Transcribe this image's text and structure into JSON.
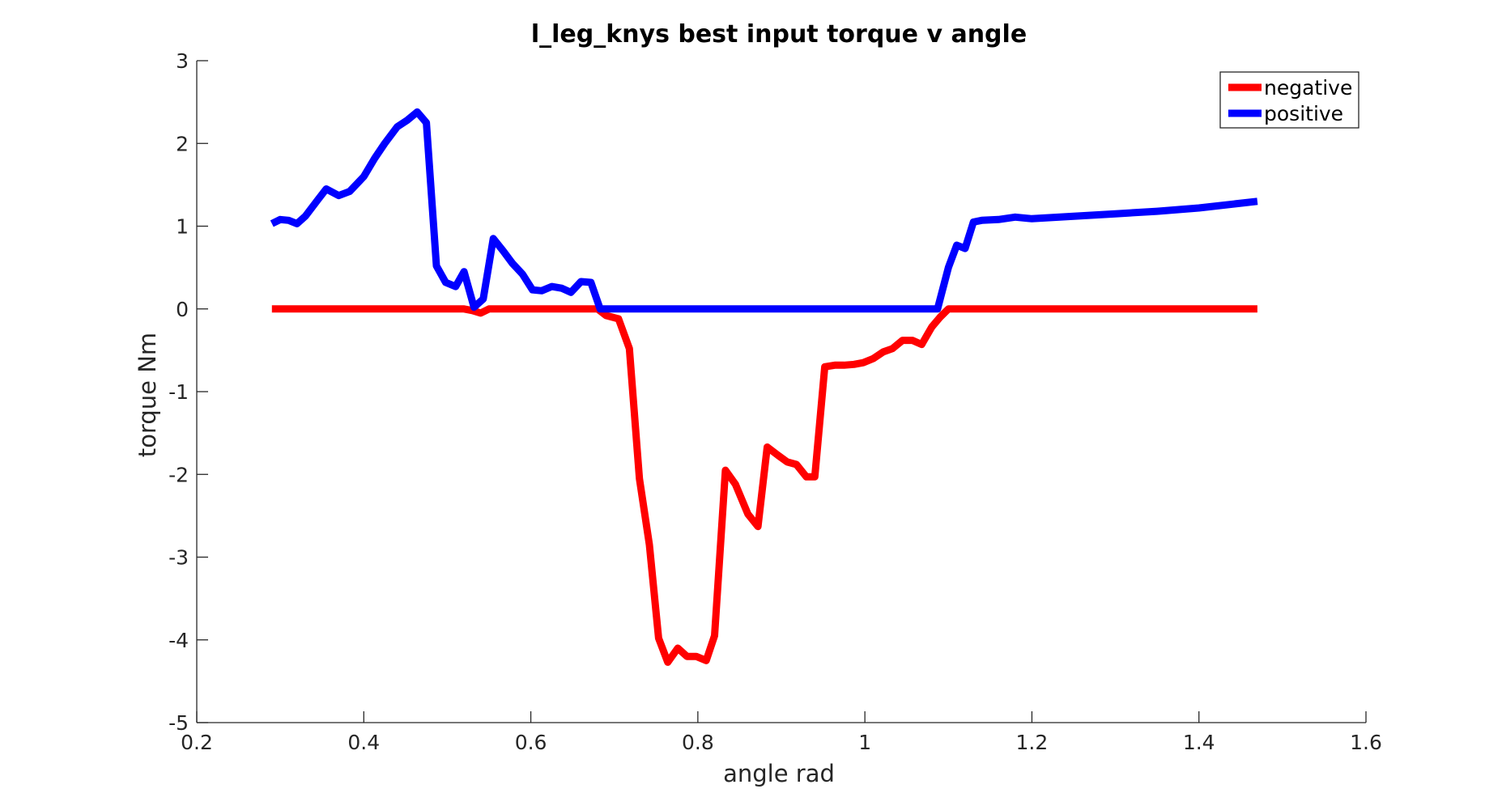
{
  "chart_data": {
    "type": "line",
    "title": "l_leg_knys best input torque v angle",
    "xlabel": "angle rad",
    "ylabel": "torque Nm",
    "xlim": [
      0.2,
      1.6
    ],
    "ylim": [
      -5,
      3
    ],
    "xticks": [
      "0.2",
      "0.4",
      "0.6",
      "0.8",
      "1",
      "1.2",
      "1.4",
      "1.6"
    ],
    "yticks": [
      "3",
      "2",
      "1",
      "0",
      "-1",
      "-2",
      "-3",
      "-4",
      "-5"
    ],
    "grid": false,
    "legend_position": "top-right",
    "series": [
      {
        "name": "negative",
        "color": "#ff0000",
        "x": [
          0.29,
          0.3,
          0.33,
          0.36,
          0.4,
          0.45,
          0.5,
          0.52,
          0.53,
          0.54,
          0.55,
          0.6,
          0.65,
          0.68,
          0.69,
          0.705,
          0.718,
          0.73,
          0.742,
          0.753,
          0.764,
          0.776,
          0.787,
          0.798,
          0.81,
          0.82,
          0.833,
          0.845,
          0.86,
          0.872,
          0.883,
          0.896,
          0.907,
          0.918,
          0.93,
          0.94,
          0.952,
          0.964,
          0.975,
          0.987,
          0.998,
          1.01,
          1.022,
          1.033,
          1.045,
          1.057,
          1.068,
          1.08,
          1.09,
          1.1,
          1.12,
          1.2,
          1.3,
          1.4,
          1.47
        ],
        "values": [
          0,
          0,
          0,
          0,
          0,
          0,
          0,
          0,
          -0.02,
          -0.05,
          0,
          0,
          0,
          0,
          -0.08,
          -0.12,
          -0.48,
          -2.05,
          -2.85,
          -3.98,
          -4.27,
          -4.1,
          -4.2,
          -4.2,
          -4.25,
          -3.95,
          -1.95,
          -2.12,
          -2.48,
          -2.63,
          -1.67,
          -1.77,
          -1.85,
          -1.88,
          -2.03,
          -2.03,
          -0.7,
          -0.68,
          -0.68,
          -0.67,
          -0.65,
          -0.6,
          -0.52,
          -0.48,
          -0.38,
          -0.38,
          -0.43,
          -0.22,
          -0.1,
          0,
          0,
          0,
          0,
          0,
          0
        ]
      },
      {
        "name": "positive",
        "color": "#0000ff",
        "x": [
          0.29,
          0.3,
          0.31,
          0.32,
          0.33,
          0.345,
          0.355,
          0.37,
          0.383,
          0.4,
          0.413,
          0.425,
          0.44,
          0.452,
          0.464,
          0.475,
          0.487,
          0.498,
          0.51,
          0.52,
          0.532,
          0.543,
          0.555,
          0.567,
          0.578,
          0.59,
          0.602,
          0.613,
          0.625,
          0.637,
          0.648,
          0.66,
          0.672,
          0.683,
          0.695,
          0.72,
          0.8,
          0.9,
          1.0,
          1.05,
          1.075,
          1.087,
          1.1,
          1.11,
          1.12,
          1.13,
          1.14,
          1.16,
          1.18,
          1.2,
          1.25,
          1.3,
          1.35,
          1.4,
          1.47
        ],
        "values": [
          1.03,
          1.08,
          1.07,
          1.03,
          1.12,
          1.32,
          1.45,
          1.37,
          1.42,
          1.6,
          1.82,
          2.0,
          2.2,
          2.28,
          2.38,
          2.25,
          0.52,
          0.32,
          0.27,
          0.45,
          0.02,
          0.12,
          0.85,
          0.7,
          0.55,
          0.42,
          0.23,
          0.22,
          0.27,
          0.25,
          0.2,
          0.33,
          0.32,
          0.0,
          0.0,
          0.0,
          0.0,
          0.0,
          0.0,
          0.0,
          0.0,
          0.0,
          0.5,
          0.77,
          0.73,
          1.05,
          1.07,
          1.08,
          1.11,
          1.09,
          1.12,
          1.15,
          1.18,
          1.22,
          1.3
        ]
      }
    ]
  }
}
